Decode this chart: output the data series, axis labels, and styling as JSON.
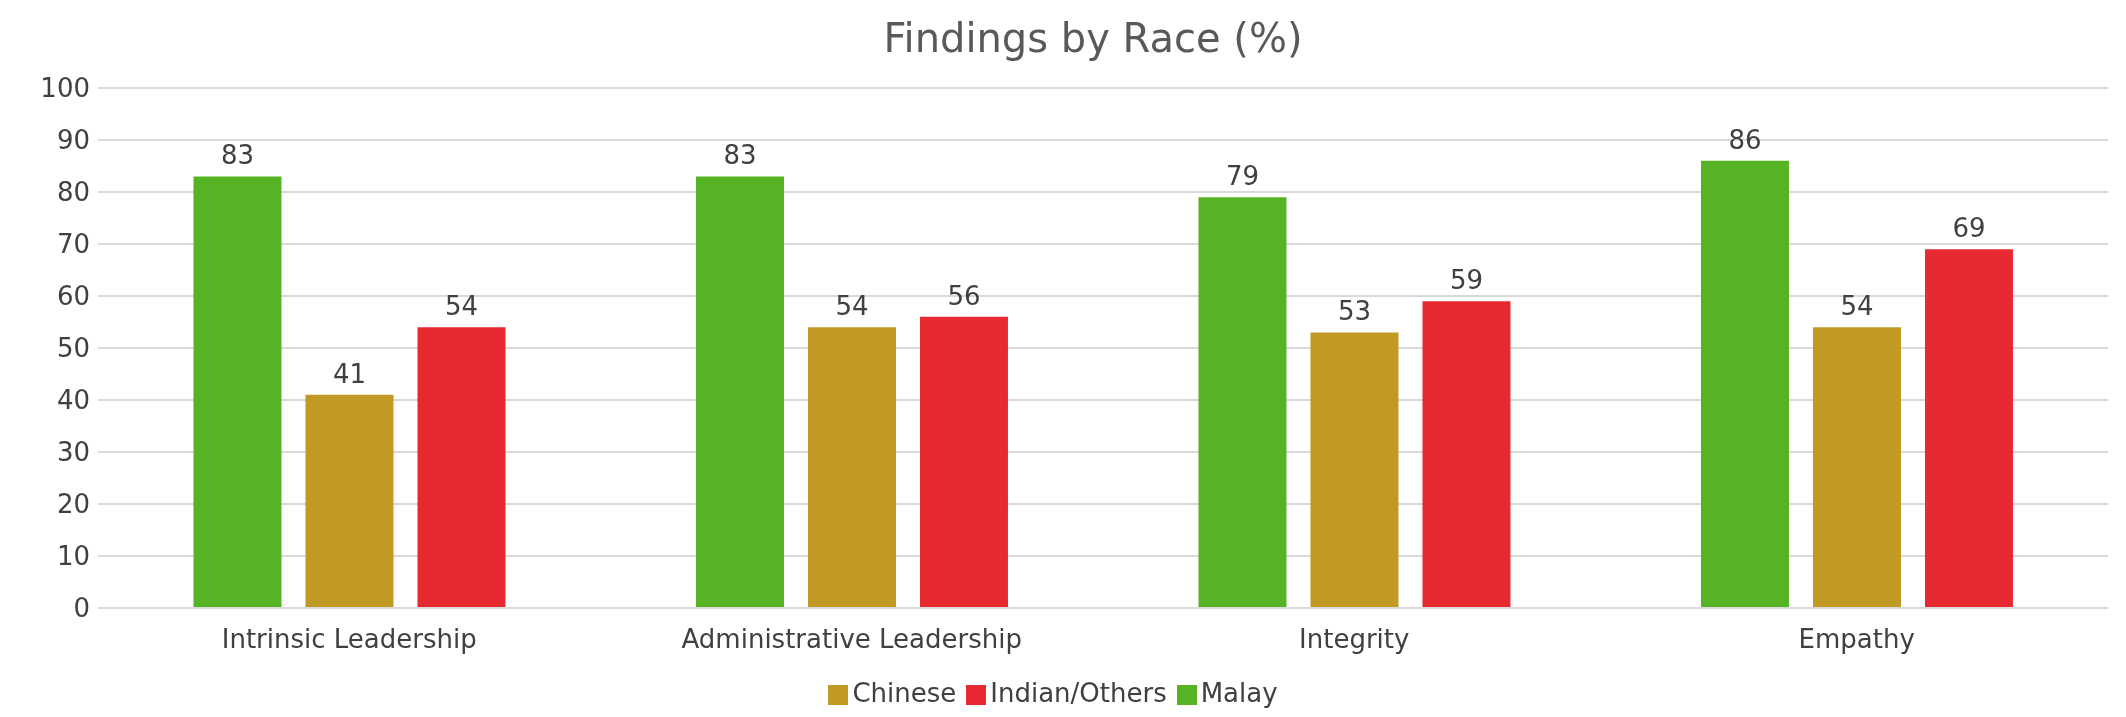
{
  "chart_data": {
    "type": "bar",
    "title": "Findings by Race (%)",
    "categories": [
      "Intrinsic Leadership",
      "Administrative Leadership",
      "Integrity",
      "Empathy"
    ],
    "series": [
      {
        "name": "Malay",
        "color": "#56b323",
        "values": [
          83,
          83,
          79,
          86
        ]
      },
      {
        "name": "Chinese",
        "color": "#c09a24",
        "values": [
          41,
          54,
          53,
          54
        ]
      },
      {
        "name": "Indian/Others",
        "color": "#e72a32",
        "values": [
          54,
          56,
          59,
          69
        ]
      }
    ],
    "ylim": [
      0,
      100
    ],
    "yticks": [
      0,
      10,
      20,
      30,
      40,
      50,
      60,
      70,
      80,
      90,
      100
    ],
    "grid": "y",
    "legend": "bottom",
    "data_labels": true
  }
}
